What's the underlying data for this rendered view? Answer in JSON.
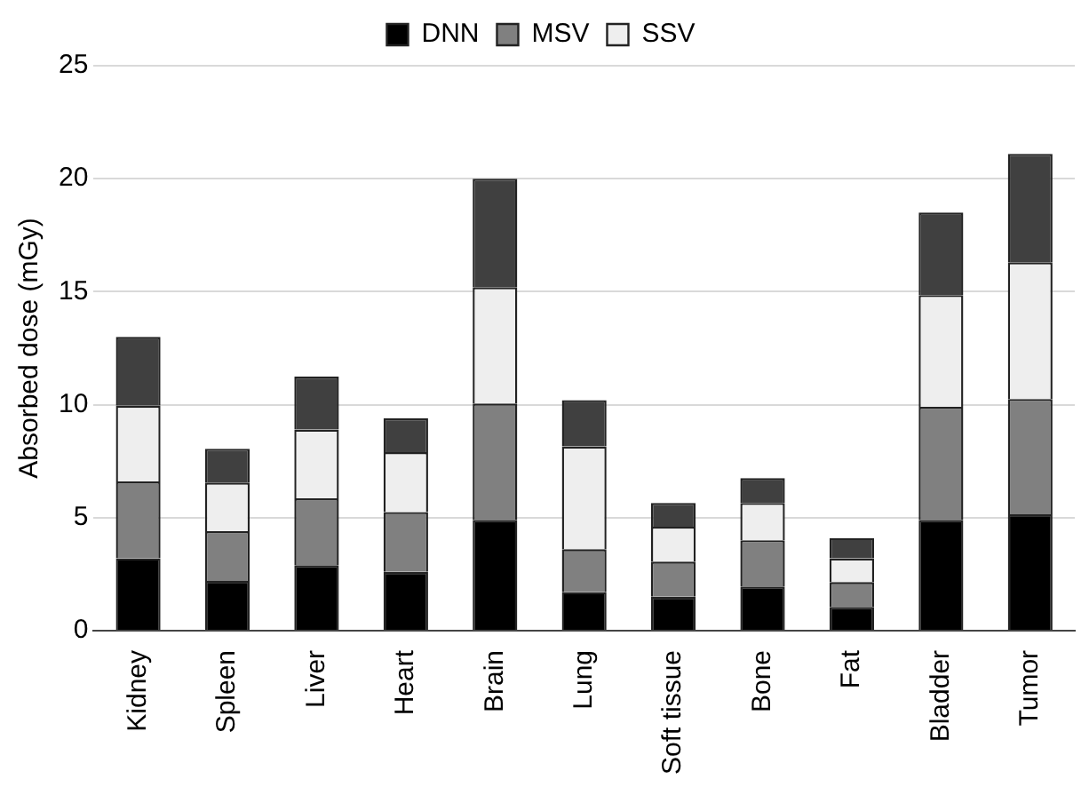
{
  "chart_data": {
    "type": "bar",
    "stacked": true,
    "ylabel": "Absorbed dose (mGy)",
    "categories": [
      "Kidney",
      "Spleen",
      "Liver",
      "Heart",
      "Brain",
      "Lung",
      "Soft tissue",
      "Bone",
      "Fat",
      "Bladder",
      "Tumor"
    ],
    "series": [
      {
        "name": "DNN",
        "color": "#000000",
        "values": [
          3.2,
          2.2,
          2.9,
          2.6,
          4.9,
          1.7,
          1.5,
          1.95,
          1.05,
          4.9,
          5.15
        ]
      },
      {
        "name": "MSV",
        "color": "#808080",
        "values": [
          3.4,
          2.2,
          2.95,
          2.65,
          5.15,
          1.9,
          1.55,
          2.05,
          1.1,
          5.0,
          5.1
        ]
      },
      {
        "name": "SSV",
        "color": "#eeeeee",
        "values": [
          3.35,
          2.15,
          3.05,
          2.65,
          5.15,
          4.55,
          1.55,
          1.65,
          1.05,
          4.95,
          6.05
        ]
      },
      {
        "color": "#404040",
        "values": [
          3.05,
          1.5,
          2.35,
          1.5,
          4.8,
          2.05,
          1.05,
          1.1,
          0.9,
          3.65,
          4.8
        ]
      }
    ],
    "ylim": [
      0,
      25
    ],
    "yticks": [
      0,
      5,
      10,
      15,
      20,
      25
    ],
    "grid": "y",
    "legend": "top"
  }
}
